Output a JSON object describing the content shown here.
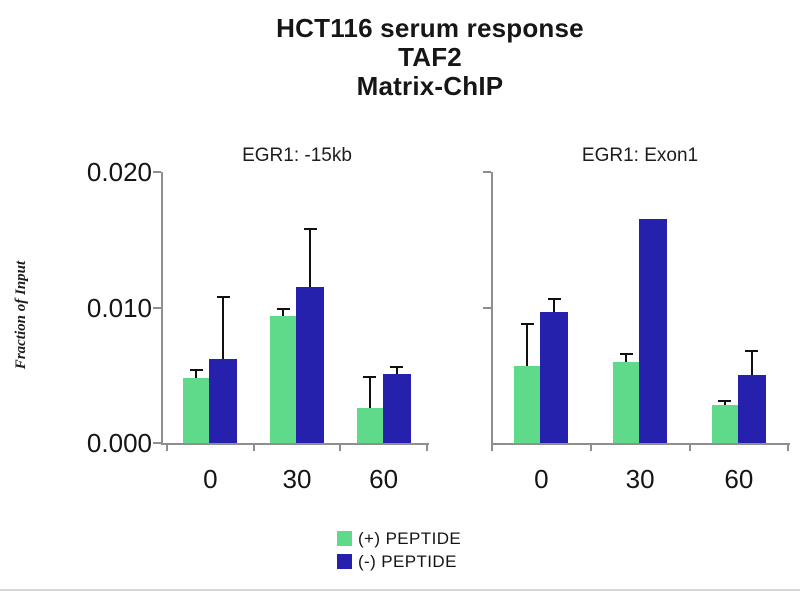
{
  "chart_data": {
    "type": "bar",
    "title_lines": [
      "HCT116 serum response",
      "TAF2",
      "Matrix-ChIP"
    ],
    "title": "HCT116 serum response TAF2 Matrix-ChIP",
    "ylabel": "Fraction of Input",
    "xlabel": "",
    "ylim": [
      0,
      0.02
    ],
    "grid": false,
    "legend_position": "bottom-center",
    "yticks": [
      {
        "value": 0.0,
        "label": "0.000"
      },
      {
        "value": 0.01,
        "label": "0.010"
      },
      {
        "value": 0.02,
        "label": "0.020"
      }
    ],
    "categories": [
      "0",
      "30",
      "60"
    ],
    "panels": [
      {
        "title": "EGR1: -15kb",
        "series": [
          {
            "name": "(+) PEPTIDE",
            "values": [
              0.0048,
              0.0094,
              0.0026
            ],
            "errors_plus": [
              0.0006,
              0.0005,
              0.0023
            ]
          },
          {
            "name": "(-) PEPTIDE",
            "values": [
              0.0062,
              0.0115,
              0.0051
            ],
            "errors_plus": [
              0.0046,
              0.0043,
              0.0005
            ]
          }
        ]
      },
      {
        "title": "EGR1: Exon1",
        "series": [
          {
            "name": "(+) PEPTIDE",
            "values": [
              0.0057,
              0.006,
              0.0028
            ],
            "errors_plus": [
              0.0031,
              0.0006,
              0.0003
            ]
          },
          {
            "name": "(-) PEPTIDE",
            "values": [
              0.0097,
              0.0165,
              0.005
            ],
            "errors_plus": [
              0.0009,
              0,
              0.0018
            ]
          }
        ]
      }
    ],
    "legend": [
      {
        "label": "(+) PEPTIDE",
        "color": "#5FD98A"
      },
      {
        "label": "(-) PEPTIDE",
        "color": "#2621AC"
      }
    ],
    "colors": {
      "plus_peptide": "#5FD98A",
      "minus_peptide": "#2621AC",
      "axis": "#8f8f8f",
      "error_bar": "#101010",
      "text": "#141414"
    }
  }
}
